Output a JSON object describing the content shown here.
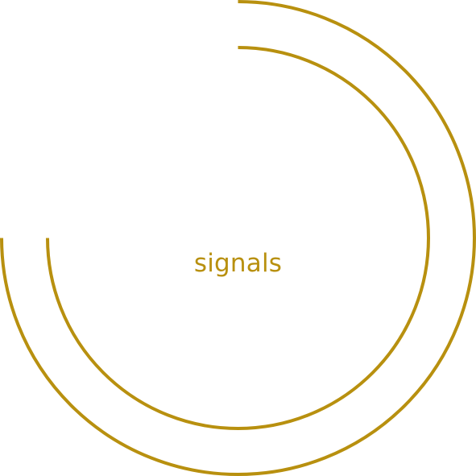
{
  "label": "signals",
  "colors": {
    "accent": "#B8900F",
    "background": "#FFFFFF"
  }
}
